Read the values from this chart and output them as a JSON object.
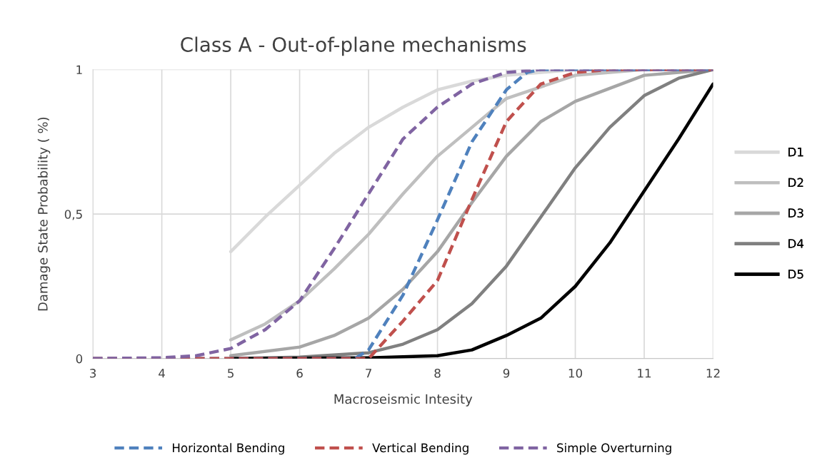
{
  "chart_data": {
    "type": "line",
    "title": "Class A - Out-of-plane mechanisms",
    "xlabel": "Macroseismic Intesity",
    "ylabel": "Damage State Probability ( %)",
    "xlim": [
      3,
      12
    ],
    "xticks": [
      3,
      4,
      5,
      6,
      7,
      8,
      9,
      10,
      11,
      12
    ],
    "ylim": [
      0,
      1
    ],
    "yticks": [
      0,
      {
        "value": 0.5,
        "label": "0,5"
      },
      1
    ],
    "grid": true,
    "legend": "right",
    "marker": "none",
    "series": [
      {
        "name": "D1",
        "color": "#d9d9d9",
        "line_style": "solid",
        "x": [
          5,
          5.5,
          6,
          6.5,
          7,
          7.5,
          8,
          8.5,
          9,
          10,
          11,
          12
        ],
        "values": [
          0.37,
          0.49,
          0.6,
          0.71,
          0.8,
          0.87,
          0.93,
          0.96,
          0.98,
          1.0,
          1.0,
          1.0
        ]
      },
      {
        "name": "D2",
        "color": "#bfbfbf",
        "line_style": "solid",
        "x": [
          5,
          5.5,
          6,
          6.5,
          7,
          7.5,
          8,
          8.5,
          9,
          10,
          11,
          12
        ],
        "values": [
          0.065,
          0.12,
          0.2,
          0.31,
          0.43,
          0.57,
          0.7,
          0.8,
          0.9,
          0.98,
          1.0,
          1.0
        ]
      },
      {
        "name": "D3",
        "color": "#a6a6a6",
        "line_style": "solid",
        "x": [
          5,
          6,
          6.5,
          7,
          7.5,
          8,
          8.5,
          9,
          9.5,
          10,
          11,
          12
        ],
        "values": [
          0.01,
          0.04,
          0.08,
          0.14,
          0.24,
          0.37,
          0.54,
          0.7,
          0.82,
          0.89,
          0.98,
          1.0
        ]
      },
      {
        "name": "D4",
        "color": "#808080",
        "line_style": "solid",
        "x": [
          5,
          6,
          7,
          7.5,
          8,
          8.5,
          9,
          9.5,
          10,
          10.5,
          11,
          11.5,
          12
        ],
        "values": [
          0.0,
          0.005,
          0.02,
          0.05,
          0.1,
          0.19,
          0.32,
          0.49,
          0.66,
          0.8,
          0.91,
          0.97,
          1.0
        ]
      },
      {
        "name": "D5",
        "color": "#000000",
        "line_style": "solid",
        "x": [
          5,
          7,
          8,
          8.5,
          9,
          9.5,
          10,
          10.5,
          11,
          11.5,
          12
        ],
        "values": [
          0.0,
          0.003,
          0.01,
          0.03,
          0.08,
          0.14,
          0.25,
          0.4,
          0.58,
          0.76,
          0.95
        ]
      },
      {
        "name": "Horizontal Bending",
        "color": "#4f81bd",
        "line_style": "dashed",
        "x": [
          3,
          4,
          5,
          6,
          6.8,
          7,
          7.5,
          8,
          8.5,
          9,
          9.3,
          9.5,
          10,
          11,
          12
        ],
        "values": [
          0,
          0,
          0,
          0,
          0,
          0.03,
          0.22,
          0.48,
          0.75,
          0.93,
          0.99,
          1.0,
          1.0,
          1.0,
          1.0
        ]
      },
      {
        "name": "Vertical Bending",
        "color": "#c0504d",
        "line_style": "dashed",
        "x": [
          3,
          4,
          5,
          6,
          7,
          7.5,
          8,
          8.5,
          9,
          9.5,
          10,
          10.5,
          11,
          12
        ],
        "values": [
          0,
          0,
          0,
          0,
          0,
          0.13,
          0.27,
          0.55,
          0.82,
          0.95,
          0.99,
          1.0,
          1.0,
          1.0
        ]
      },
      {
        "name": "Simple Overturning",
        "color": "#8064a2",
        "line_style": "dashed",
        "x": [
          3,
          4,
          4.5,
          5,
          5.5,
          6,
          6.5,
          7,
          7.5,
          8,
          8.5,
          9,
          9.5,
          10,
          11,
          12
        ],
        "values": [
          0,
          0.003,
          0.01,
          0.035,
          0.1,
          0.2,
          0.38,
          0.57,
          0.76,
          0.87,
          0.95,
          0.99,
          1.0,
          1.0,
          1.0,
          1.0
        ]
      }
    ]
  }
}
